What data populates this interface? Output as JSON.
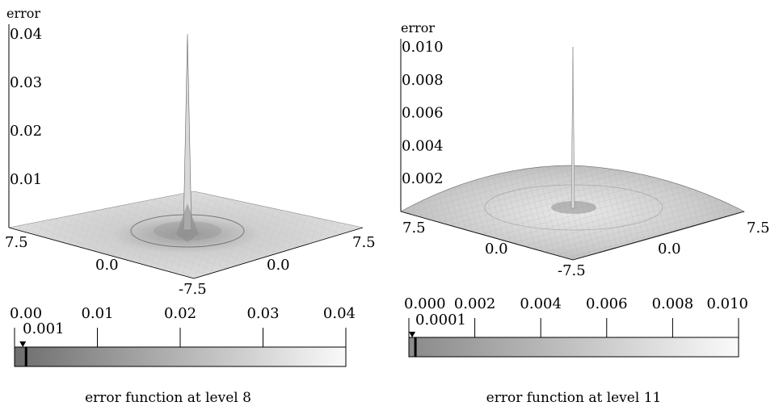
{
  "chart_data": [
    {
      "type": "surface3d",
      "caption": "error function at level 8",
      "zlabel": "error",
      "zticks": [
        "0.01",
        "0.02",
        "0.03",
        "0.04"
      ],
      "zlim": [
        0,
        0.04
      ],
      "xticks": [
        "7.5",
        "0.0"
      ],
      "yticks": [
        "0.0",
        "7.5"
      ],
      "corner_label": "-7.5",
      "peak": {
        "x": 0.0,
        "y": 0.0,
        "z": 0.04
      },
      "colorbar": {
        "ticks": [
          "0.00",
          "0.01",
          "0.02",
          "0.03",
          "0.04"
        ],
        "tick_values": [
          0.0,
          0.01,
          0.02,
          0.03,
          0.04
        ],
        "range": [
          0,
          0.04
        ],
        "marker_label": "0.001",
        "marker_value": 0.001
      }
    },
    {
      "type": "surface3d",
      "caption": "error function at level 11",
      "zlabel": "error",
      "zticks": [
        "0.002",
        "0.004",
        "0.006",
        "0.008",
        "0.010"
      ],
      "zlim": [
        0,
        0.01
      ],
      "xticks": [
        "7.5",
        "0.0"
      ],
      "yticks": [
        "0.0",
        "7.5"
      ],
      "corner_label": "-7.5",
      "peak": {
        "x": 0.0,
        "y": 0.0,
        "z": 0.01
      },
      "colorbar": {
        "ticks": [
          "0.000",
          "0.002",
          "0.004",
          "0.006",
          "0.008",
          "0.010"
        ],
        "tick_values": [
          0.0,
          0.002,
          0.004,
          0.006,
          0.008,
          0.01
        ],
        "range": [
          0,
          0.01
        ],
        "marker_label": "0.0001",
        "marker_value": 0.0001
      }
    }
  ]
}
